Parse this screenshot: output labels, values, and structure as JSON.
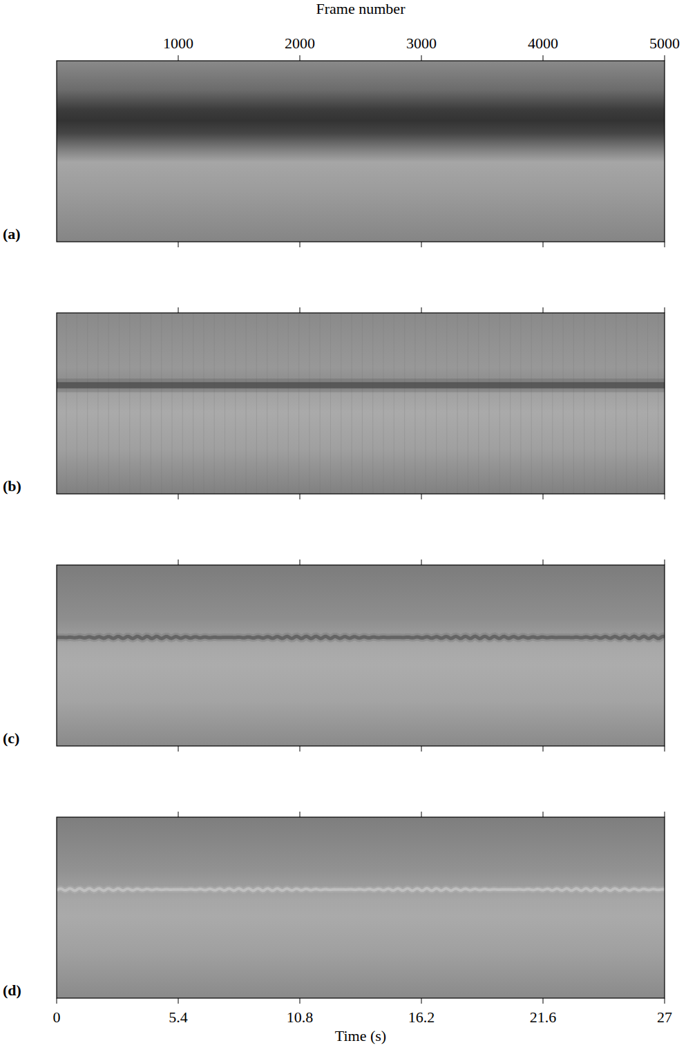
{
  "chart_data": {
    "type": "image_panels",
    "x2_label": "Frame number",
    "x2lim": [
      0,
      5000
    ],
    "x2ticks": [
      1000,
      2000,
      3000,
      4000,
      5000
    ],
    "x_label": "Time (s)",
    "xlim": [
      0,
      27
    ],
    "xticks": [
      0,
      5.4,
      10.8,
      16.2,
      21.6,
      27
    ],
    "panels": [
      "(a)",
      "(b)",
      "(c)",
      "(d)"
    ]
  }
}
